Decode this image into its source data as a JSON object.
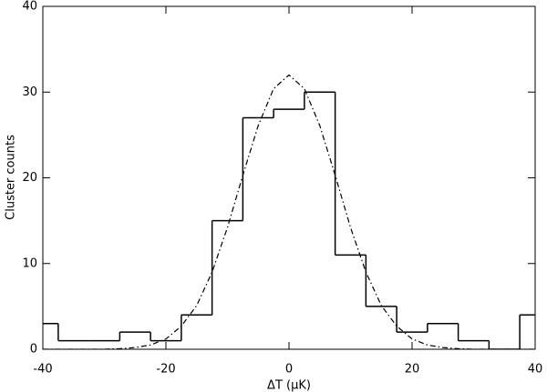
{
  "chart_data": {
    "type": "histogram",
    "xlabel": "ΔT (μK)",
    "ylabel": "Cluster counts",
    "bins": [
      -42.5,
      -37.5,
      -32.5,
      -27.5,
      -22.5,
      -17.5,
      -12.5,
      -7.5,
      -2.5,
      2.5,
      7.5,
      12.5,
      17.5,
      22.5,
      27.5,
      32.5,
      37.5,
      42.5
    ],
    "values": [
      3,
      1,
      1,
      2,
      1,
      4,
      15,
      27,
      28,
      30,
      11,
      5,
      2,
      3,
      1,
      0,
      4
    ],
    "color": "#000000",
    "fit": {
      "x": [
        -40,
        -37.5,
        -35,
        -32.5,
        -30,
        -27.5,
        -25,
        -22.5,
        -20,
        -17.5,
        -15,
        -12.5,
        -10,
        -7.5,
        -5,
        -2.5,
        0,
        2.5,
        5,
        7.5,
        10,
        12.5,
        15,
        17.5,
        20,
        22.5,
        25,
        27.5,
        30,
        32.5,
        35,
        37.5,
        40
      ],
      "values": [
        0,
        0,
        0,
        0,
        0,
        0.07,
        0.2,
        0.5,
        1.2,
        2.7,
        5.1,
        9.0,
        14.2,
        20.3,
        26.1,
        30.4,
        32,
        30.4,
        26.1,
        20.3,
        14.2,
        9.0,
        5.1,
        2.7,
        1.2,
        0.5,
        0.2,
        0.07,
        0,
        0,
        0,
        0,
        0
      ],
      "linestyle": "dashdot",
      "color": "#000000"
    },
    "xlim": [
      -40,
      40
    ],
    "ylim": [
      0,
      40
    ],
    "xticks": [
      -40,
      -20,
      0,
      20,
      40
    ],
    "yticks": [
      0,
      10,
      20,
      30,
      40
    ]
  }
}
